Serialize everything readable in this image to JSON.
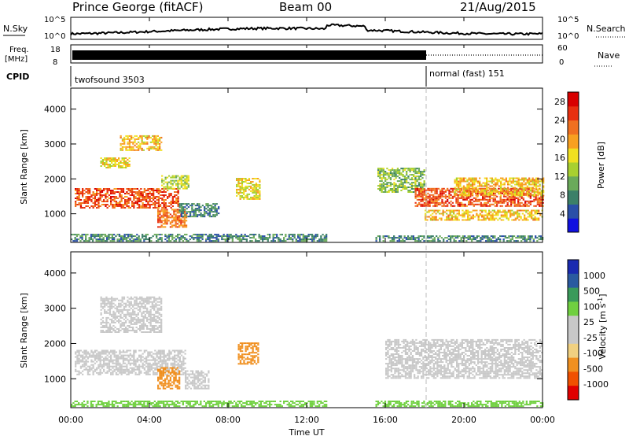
{
  "header": {
    "station": "Prince George (fitACF)",
    "beam": "Beam 00",
    "date": "21/Aug/2015"
  },
  "status_rows": {
    "nsky_label": "N.Sky",
    "nsky_ticks": [
      "10^5",
      "10^0"
    ],
    "nsearch_label": "N.Search",
    "nsearch_ticks": [
      "10^5",
      "10^0"
    ],
    "freq_label_line1": "Freq.",
    "freq_label_line2": "[MHz]",
    "freq_ticks": [
      "18",
      "8"
    ],
    "nave_label": "Nave",
    "nave_ticks": [
      "60",
      "0"
    ],
    "cpid_label": "CPID",
    "cpid_segments": [
      {
        "label": "twofsound 3503",
        "start_hour": 0
      },
      {
        "label": "normal (fast) 151",
        "start_hour": 18
      }
    ]
  },
  "x_axis": {
    "label": "Time UT",
    "ticks": [
      "00:00",
      "04:00",
      "08:00",
      "12:00",
      "16:00",
      "20:00",
      "00:00"
    ]
  },
  "colors": {
    "power_scale": [
      "#1010e0",
      "#2a4fa8",
      "#3c8068",
      "#6aaa5a",
      "#a8d030",
      "#f0e020",
      "#f8a020",
      "#f07020",
      "#e83010",
      "#d80000"
    ],
    "velocity_scale": [
      "#e00000",
      "#f05000",
      "#f09020",
      "#f0d080",
      "#c8c8c8",
      "#c8c8c8",
      "#70d040",
      "#3a9a5a",
      "#2a5aa0",
      "#1a2ab0"
    ]
  },
  "chart_data": [
    {
      "type": "heatmap",
      "title": "",
      "xlabel": "",
      "ylabel": "Slant Range [km]",
      "x_range_hours": [
        0,
        24
      ],
      "ylim": [
        180,
        4600
      ],
      "y_ticks": [
        1000,
        2000,
        3000,
        4000
      ],
      "colorbar_label": "Power [dB]",
      "colorbar_ticks": [
        4,
        8,
        12,
        16,
        20,
        24,
        28
      ],
      "colorbar_range": [
        0,
        30
      ],
      "regions": [
        {
          "t0": 0.2,
          "t1": 5.5,
          "r0": 1150,
          "r1": 1700,
          "value": 24
        },
        {
          "t0": 1.5,
          "t1": 3.0,
          "r0": 2300,
          "r1": 2600,
          "value": 16
        },
        {
          "t0": 2.5,
          "t1": 4.6,
          "r0": 2800,
          "r1": 3250,
          "value": 18
        },
        {
          "t0": 4.6,
          "t1": 6.0,
          "r0": 1700,
          "r1": 2100,
          "value": 14
        },
        {
          "t0": 4.4,
          "t1": 5.9,
          "r0": 600,
          "r1": 1100,
          "value": 22
        },
        {
          "t0": 5.5,
          "t1": 7.5,
          "r0": 900,
          "r1": 1300,
          "value": 8
        },
        {
          "t0": 8.4,
          "t1": 9.6,
          "r0": 1400,
          "r1": 2000,
          "value": 16
        },
        {
          "t0": 15.6,
          "t1": 18.0,
          "r0": 1600,
          "r1": 2300,
          "value": 12
        },
        {
          "t0": 17.5,
          "t1": 24.0,
          "r0": 1200,
          "r1": 1700,
          "value": 24
        },
        {
          "t0": 18.0,
          "t1": 24.0,
          "r0": 800,
          "r1": 1100,
          "value": 18
        },
        {
          "t0": 19.5,
          "t1": 24.0,
          "r0": 1500,
          "r1": 2000,
          "value": 18
        },
        {
          "t0": 0.0,
          "t1": 13.0,
          "r0": 200,
          "r1": 400,
          "value": 8
        },
        {
          "t0": 15.5,
          "t1": 24.0,
          "r0": 200,
          "r1": 350,
          "value": 8
        }
      ]
    },
    {
      "type": "heatmap",
      "title": "",
      "xlabel": "Time UT",
      "ylabel": "Slant Range [km]",
      "x_range_hours": [
        0,
        24
      ],
      "ylim": [
        180,
        4600
      ],
      "y_ticks": [
        1000,
        2000,
        3000,
        4000
      ],
      "colorbar_label": "Velocity [m s^-1]",
      "colorbar_ticks": [
        1000,
        500,
        100,
        25,
        -25,
        -100,
        -500,
        -1000
      ],
      "regions": [
        {
          "t0": 0.2,
          "t1": 5.8,
          "r0": 1100,
          "r1": 1800,
          "value": 0
        },
        {
          "t0": 1.5,
          "t1": 4.6,
          "r0": 2300,
          "r1": 3300,
          "value": 0
        },
        {
          "t0": 4.4,
          "t1": 5.5,
          "r0": 700,
          "r1": 1300,
          "value": -300
        },
        {
          "t0": 5.8,
          "t1": 7.0,
          "r0": 700,
          "r1": 1200,
          "value": 0
        },
        {
          "t0": 8.5,
          "t1": 9.5,
          "r0": 1400,
          "r1": 2000,
          "value": -200
        },
        {
          "t0": 16.0,
          "t1": 24.0,
          "r0": 1000,
          "r1": 2100,
          "value": 0
        },
        {
          "t0": 0.0,
          "t1": 13.0,
          "r0": 200,
          "r1": 350,
          "value": 60
        },
        {
          "t0": 15.5,
          "t1": 24.0,
          "r0": 200,
          "r1": 350,
          "value": 60
        }
      ]
    }
  ]
}
